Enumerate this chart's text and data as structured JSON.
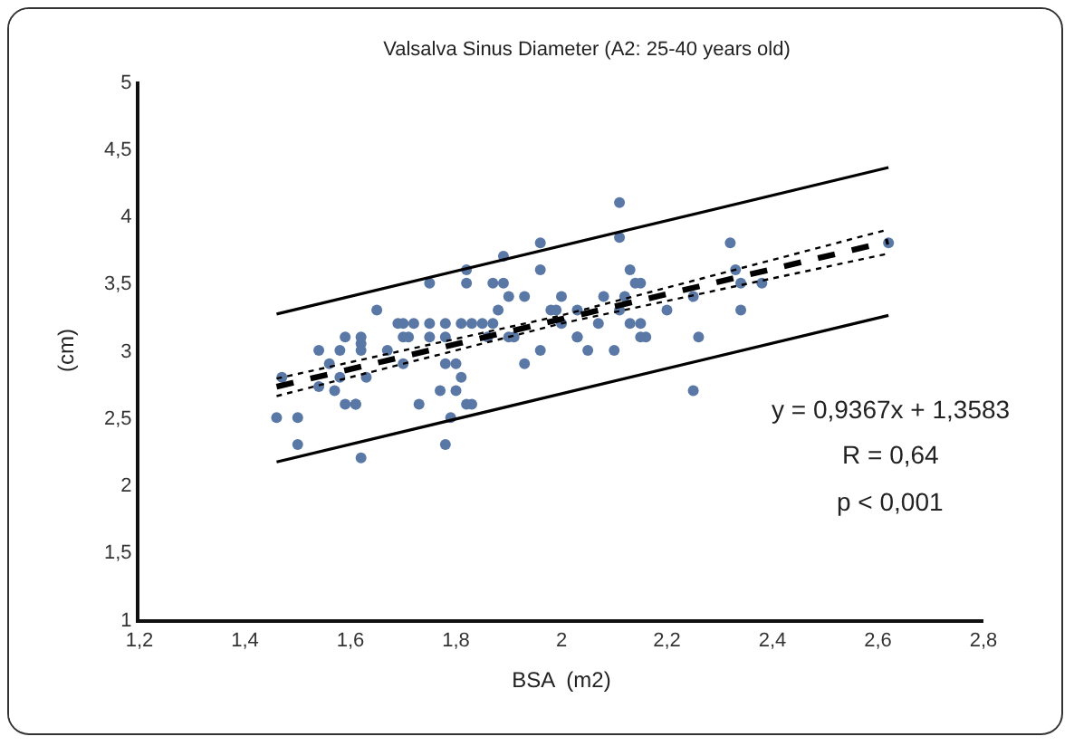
{
  "chart_data": {
    "type": "scatter",
    "title": "Valsalva Sinus Diameter (A2: 25-40 years old)",
    "xlabel": "BSA  (m2)",
    "ylabel": "(cm)",
    "xlim": [
      1.2,
      2.8
    ],
    "ylim": [
      1,
      5
    ],
    "xticks": [
      {
        "value": 1.2,
        "label": "1,2"
      },
      {
        "value": 1.4,
        "label": "1,4"
      },
      {
        "value": 1.6,
        "label": "1,6"
      },
      {
        "value": 1.8,
        "label": "1,8"
      },
      2,
      {
        "value": 2.2,
        "label": "2,2"
      },
      {
        "value": 2.4,
        "label": "2,4"
      },
      {
        "value": 2.6,
        "label": "2,6"
      },
      {
        "value": 2.8,
        "label": "2,8"
      }
    ],
    "yticks": [
      1,
      {
        "value": 1.5,
        "label": "1,5"
      },
      2,
      {
        "value": 2.5,
        "label": "2,5"
      },
      3,
      {
        "value": 3.5,
        "label": "3,5"
      },
      4,
      {
        "value": 4.5,
        "label": "4,5"
      },
      5
    ],
    "grid": false,
    "annotations": [
      "y = 0,9367x + 1,3583",
      "R = 0,64",
      "p < 0,001"
    ],
    "series": [
      {
        "marker": "circle",
        "color": "#5a78a6",
        "x": [
          1.46,
          1.47,
          1.5,
          1.5,
          1.54,
          1.54,
          1.56,
          1.58,
          1.59,
          1.58,
          1.57,
          1.59,
          1.61,
          1.61,
          1.62,
          1.62,
          1.62,
          1.62,
          1.63,
          1.65,
          1.67,
          1.69,
          1.7,
          1.7,
          1.7,
          1.71,
          1.72,
          1.73,
          1.75,
          1.75,
          1.75,
          1.77,
          1.78,
          1.78,
          1.78,
          1.78,
          1.79,
          1.8,
          1.8,
          1.81,
          1.81,
          1.82,
          1.82,
          1.82,
          1.83,
          1.83,
          1.85,
          1.86,
          1.87,
          1.87,
          1.88,
          1.89,
          1.89,
          1.9,
          1.9,
          1.91,
          1.93,
          1.93,
          1.96,
          1.96,
          1.96,
          1.98,
          1.99,
          2.0,
          2.0,
          2.03,
          2.03,
          2.03,
          2.05,
          2.07,
          2.08,
          2.1,
          2.11,
          2.11,
          2.11,
          2.12,
          2.13,
          2.13,
          2.14,
          2.15,
          2.15,
          2.15,
          2.16,
          2.2,
          2.25,
          2.25,
          2.26,
          2.32,
          2.33,
          2.34,
          2.34,
          2.38,
          2.62
        ],
        "values": [
          2.5,
          2.8,
          2.3,
          2.5,
          3.0,
          2.73,
          2.9,
          3.0,
          3.1,
          2.8,
          2.7,
          2.6,
          2.6,
          2.6,
          3.1,
          3.05,
          3.0,
          2.2,
          2.8,
          3.3,
          3.0,
          3.2,
          3.2,
          3.1,
          2.9,
          3.1,
          3.2,
          2.6,
          3.5,
          3.2,
          3.1,
          2.7,
          3.2,
          3.1,
          2.9,
          2.3,
          2.5,
          2.7,
          2.9,
          2.8,
          3.2,
          3.5,
          3.6,
          2.6,
          2.6,
          3.2,
          3.2,
          3.1,
          3.5,
          3.2,
          3.3,
          3.7,
          3.5,
          3.1,
          3.4,
          3.1,
          2.9,
          3.4,
          3.0,
          3.8,
          3.6,
          3.3,
          3.3,
          3.4,
          3.2,
          3.1,
          3.1,
          3.3,
          3.0,
          3.2,
          3.4,
          3.0,
          4.1,
          3.84,
          3.3,
          3.4,
          3.6,
          3.2,
          3.5,
          3.5,
          3.2,
          3.1,
          3.1,
          3.3,
          3.4,
          2.7,
          3.1,
          3.8,
          3.6,
          3.5,
          3.3,
          3.5,
          3.8
        ]
      },
      {
        "type": "line",
        "line_style": "solid",
        "color": "#000000",
        "x": [
          1.46,
          2.62
        ],
        "values": [
          3.27,
          4.36
        ]
      },
      {
        "type": "line",
        "line_style": "solid",
        "color": "#000000",
        "x": [
          1.46,
          2.62
        ],
        "values": [
          2.17,
          3.26
        ]
      },
      {
        "type": "line",
        "line_style": "dotted",
        "color": "#000000",
        "x": [
          1.46,
          2.0,
          2.62
        ],
        "values": [
          2.79,
          3.26,
          3.9
        ]
      },
      {
        "type": "line",
        "line_style": "dotted",
        "color": "#000000",
        "x": [
          1.46,
          2.0,
          2.62
        ],
        "values": [
          2.66,
          3.2,
          3.72
        ]
      },
      {
        "type": "line",
        "line_style": "dashed",
        "color": "#000000",
        "x": [
          1.46,
          2.62
        ],
        "values": [
          2.73,
          3.81
        ]
      }
    ]
  }
}
